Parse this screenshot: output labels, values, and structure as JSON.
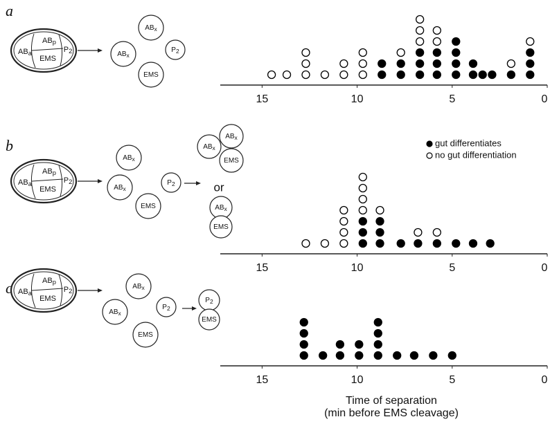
{
  "panels": [
    {
      "label": "a",
      "embryo": [
        [
          "AB",
          "a"
        ],
        [
          "AB",
          "p"
        ],
        [
          "EMS"
        ],
        [
          "P",
          "2"
        ]
      ],
      "separated": [
        [
          "AB",
          "x"
        ],
        [
          "AB",
          "x"
        ],
        [
          "P",
          "2"
        ],
        [
          "EMS"
        ]
      ]
    },
    {
      "label": "b",
      "embryo": [
        [
          "AB",
          "a"
        ],
        [
          "AB",
          "p"
        ],
        [
          "EMS"
        ],
        [
          "P",
          "2"
        ]
      ],
      "separated": [
        [
          "AB",
          "x"
        ],
        [
          "AB",
          "x"
        ],
        [
          "P",
          "2"
        ],
        [
          "EMS"
        ]
      ],
      "result_1": [
        [
          "AB",
          "x"
        ],
        [
          "AB",
          "x"
        ],
        [
          "EMS"
        ]
      ],
      "or": "or",
      "result_2": [
        [
          "AB",
          "x"
        ],
        [
          "EMS"
        ]
      ]
    },
    {
      "label": "c",
      "embryo": [
        [
          "AB",
          "a"
        ],
        [
          "AB",
          "p"
        ],
        [
          "EMS"
        ],
        [
          "P",
          "2"
        ]
      ],
      "separated": [
        [
          "AB",
          "x"
        ],
        [
          "AB",
          "x"
        ],
        [
          "P",
          "2"
        ],
        [
          "EMS"
        ]
      ],
      "result_1": [
        [
          "P",
          "2"
        ],
        [
          "EMS"
        ]
      ]
    }
  ],
  "chart_data": [
    {
      "type": "dot",
      "xlim": [
        17.2,
        0
      ],
      "xticks": [
        15,
        10,
        5,
        0
      ],
      "x": [
        14.5,
        13.7,
        12.7,
        11.7,
        10.7,
        9.7,
        8.7,
        7.7,
        6.7,
        5.8,
        4.8,
        3.9,
        3.4,
        2.9,
        1.9,
        0.9
      ],
      "series": [
        {
          "color": "#000000",
          "marker": "filled",
          "values": [
            0,
            0,
            0,
            0,
            0,
            0,
            2,
            2,
            3,
            3,
            4,
            2,
            1,
            1,
            1,
            3
          ]
        },
        {
          "color": "#000000",
          "marker": "open",
          "values": [
            1,
            1,
            3,
            1,
            2,
            3,
            0,
            1,
            3,
            2,
            0,
            0,
            0,
            0,
            1,
            1
          ]
        }
      ]
    },
    {
      "type": "dot",
      "xlim": [
        17.2,
        0
      ],
      "xticks": [
        15,
        10,
        5,
        0
      ],
      "legend": "top-right",
      "x": [
        12.7,
        11.7,
        10.7,
        9.7,
        8.8,
        7.7,
        6.8,
        5.8,
        4.8,
        3.9,
        3.0
      ],
      "series": [
        {
          "name": "gut differentiates",
          "color": "#000000",
          "marker": "filled",
          "values": [
            0,
            0,
            0,
            3,
            3,
            1,
            1,
            1,
            1,
            1,
            1
          ]
        },
        {
          "name": "no gut differentiation",
          "color": "#000000",
          "marker": "open",
          "values": [
            1,
            1,
            4,
            4,
            1,
            0,
            1,
            1,
            0,
            0,
            0
          ]
        }
      ]
    },
    {
      "type": "dot",
      "xlim": [
        17.2,
        0
      ],
      "xticks": [
        15,
        10,
        5,
        0
      ],
      "xlabel": [
        "Time of separation",
        "(min before EMS cleavage)"
      ],
      "x": [
        12.8,
        11.8,
        10.9,
        9.9,
        8.9,
        7.9,
        7.0,
        6.0,
        5.0
      ],
      "series": [
        {
          "color": "#000000",
          "marker": "filled",
          "values": [
            4,
            1,
            2,
            2,
            4,
            1,
            1,
            1,
            1
          ]
        }
      ]
    }
  ]
}
